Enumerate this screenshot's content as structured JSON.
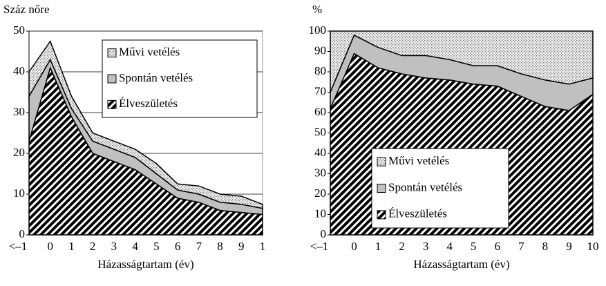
{
  "chart_data": [
    {
      "type": "stacked-area",
      "y_label": "Száz nőre",
      "x_label": "Házasságtartam (év)",
      "categories": [
        "<–1",
        "0",
        "1",
        "2",
        "3",
        "4",
        "5",
        "6",
        "7",
        "8",
        "9",
        "1"
      ],
      "ylim": [
        0,
        50
      ],
      "yticks": [
        0,
        10,
        20,
        30,
        40,
        50
      ],
      "grid": true,
      "series": [
        {
          "name": "Élveszületés",
          "values": [
            23,
            41,
            29,
            20,
            18,
            16,
            12.5,
            9,
            8,
            6,
            5.5,
            5
          ]
        },
        {
          "name": "Spontán vetélés",
          "values": [
            11,
            2,
            2,
            3,
            3,
            3,
            2.5,
            2,
            2,
            2,
            2,
            1.5
          ]
        },
        {
          "name": "Művi vetélés",
          "values": [
            6,
            4.5,
            3,
            2,
            2,
            2,
            2.5,
            1.5,
            2,
            2,
            2,
            1
          ]
        }
      ]
    },
    {
      "type": "stacked-area",
      "y_label": "%",
      "x_label": "Házasságtartam (év)",
      "categories": [
        "<–1",
        "0",
        "1",
        "2",
        "3",
        "4",
        "5",
        "6",
        "7",
        "8",
        "9",
        "10"
      ],
      "ylim": [
        0,
        100
      ],
      "yticks": [
        0,
        10,
        20,
        30,
        40,
        50,
        60,
        70,
        80,
        90,
        100
      ],
      "grid": false,
      "series": [
        {
          "name": "Élveszületés",
          "values": [
            62,
            89,
            82,
            79,
            77,
            76,
            74,
            73,
            68,
            63,
            61,
            69
          ]
        },
        {
          "name": "Spontán vetélés",
          "values": [
            8,
            9,
            10,
            9,
            11,
            10,
            9,
            10,
            11,
            13,
            13,
            8
          ]
        },
        {
          "name": "Művi vetélés",
          "values": [
            30,
            2,
            8,
            12,
            12,
            14,
            17,
            17,
            21,
            24,
            26,
            23
          ]
        }
      ]
    }
  ]
}
